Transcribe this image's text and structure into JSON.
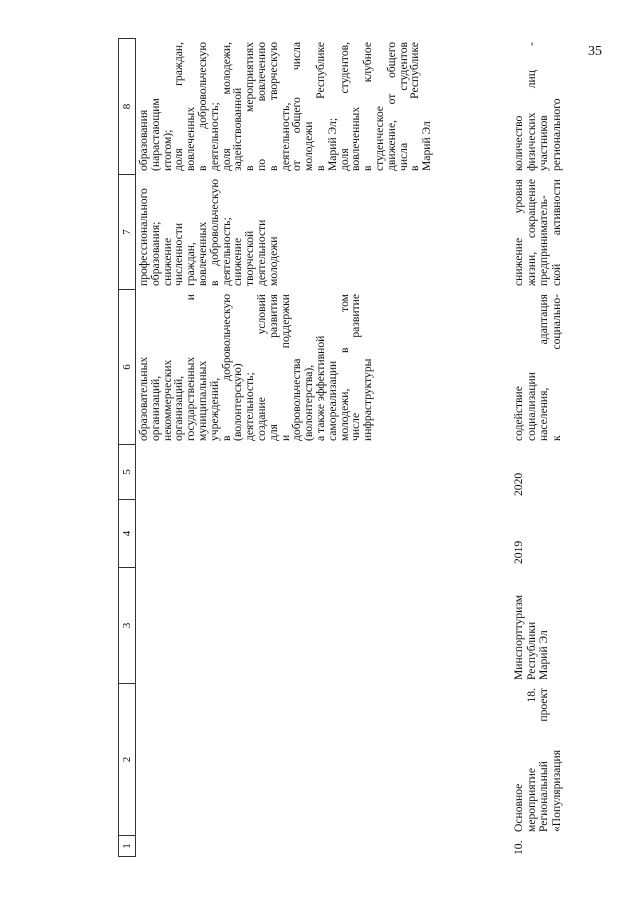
{
  "page_number": "35",
  "header": [
    "1",
    "2",
    "3",
    "4",
    "5",
    "6",
    "7",
    "8"
  ],
  "row_continued": {
    "col6": [
      "образовательных",
      "организаций,",
      "некоммерческих",
      "организаций,",
      "государственных и",
      "муниципальных",
      "учреждений,",
      "в добровольческую",
      "(волонтерскую)",
      "деятельность;",
      "создание условий",
      "для развития",
      "и поддержки",
      "добровольчества",
      "(волонтерства),",
      "а также эффективной",
      "самореализации",
      "молодежи, в том",
      "числе развитие",
      "инфраструктуры"
    ],
    "col7": [
      "профессионального",
      "образования;",
      "снижение",
      "численности",
      "граждан,",
      "вовлеченных",
      "в добровольческую",
      "деятельность;",
      "снижение",
      "творческой",
      "деятельности",
      "молодежи"
    ],
    "col8": [
      "образования",
      "(нарастающим",
      "итогом);",
      "доля граждан,",
      "вовлеченных",
      "в добровольческую",
      "деятельность;",
      "доля молодежи,",
      "задействованной",
      "в мероприятиях",
      "по вовлечению",
      "в творческую",
      "деятельность,",
      "от общего числа",
      "молодежи",
      "в Республике",
      "Марий Эл;",
      "доля студентов,",
      "вовлеченных",
      "в клубное",
      "студенческое",
      "движение, от общего",
      "числа студентов",
      "в Республике",
      "Марий Эл"
    ]
  },
  "row_10": {
    "col1": [
      "10."
    ],
    "col2": [
      "Основное",
      "мероприятие 18.",
      "Региональный проект",
      "«Популяризация"
    ],
    "col3": [
      "Минспорттуризм",
      "Республики",
      "Марий Эл"
    ],
    "col4": [
      "2019"
    ],
    "col5": [
      "2020"
    ],
    "col6": [
      "содействие",
      "социализации",
      "населения, адаптация",
      "к социально-"
    ],
    "col7": [
      "снижение уровня",
      "жизни, сокращение",
      "предприниматель-",
      "ской активности"
    ],
    "col8": [
      "количество",
      "физических лиц -",
      "участников",
      "регионального"
    ]
  }
}
